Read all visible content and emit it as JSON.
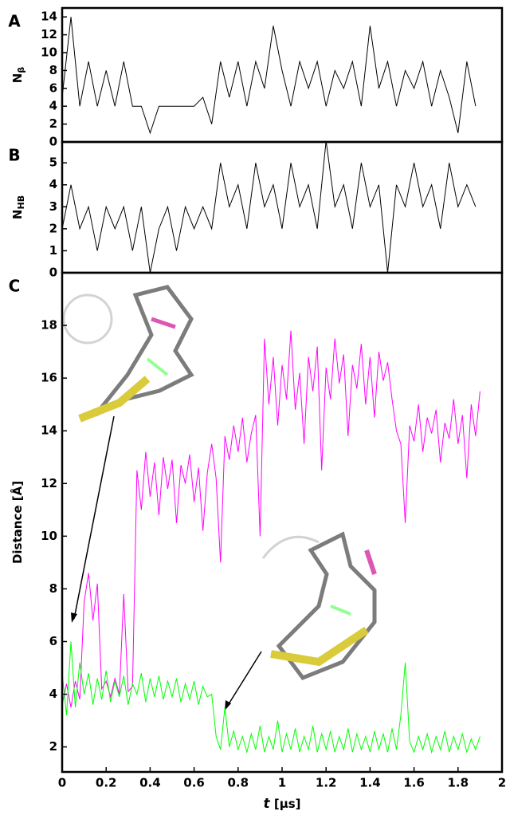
{
  "chart_data": [
    {
      "type": "line",
      "panel_label": "A",
      "y_label": "N",
      "y_label_subscript": "β",
      "xlim": [
        0,
        2
      ],
      "ylim": [
        0,
        15
      ],
      "yticks": [
        0,
        2,
        4,
        6,
        8,
        10,
        12,
        14
      ],
      "x": [
        0,
        0.04,
        0.08,
        0.12,
        0.16,
        0.2,
        0.24,
        0.28,
        0.32,
        0.36,
        0.4,
        0.44,
        0.48,
        0.52,
        0.56,
        0.6,
        0.64,
        0.68,
        0.72,
        0.76,
        0.8,
        0.84,
        0.88,
        0.92,
        0.96,
        1.0,
        1.04,
        1.08,
        1.12,
        1.16,
        1.2,
        1.24,
        1.28,
        1.32,
        1.36,
        1.4,
        1.44,
        1.48,
        1.52,
        1.56,
        1.6,
        1.64,
        1.68,
        1.72,
        1.76,
        1.8,
        1.84,
        1.88
      ],
      "series": [
        {
          "color": "#000000",
          "values": [
            5,
            14,
            4,
            9,
            4,
            8,
            4,
            9,
            4,
            4,
            1,
            4,
            4,
            4,
            4,
            4,
            5,
            2,
            9,
            5,
            9,
            4,
            9,
            6,
            13,
            8,
            4,
            9,
            6,
            9,
            4,
            8,
            6,
            9,
            4,
            13,
            6,
            9,
            4,
            8,
            6,
            9,
            4,
            8,
            5,
            1,
            9,
            4
          ]
        }
      ]
    },
    {
      "type": "line",
      "panel_label": "B",
      "y_label": "N",
      "y_label_subscript": "HB",
      "xlim": [
        0,
        2
      ],
      "ylim": [
        0,
        5.95
      ],
      "yticks": [
        0,
        1,
        2,
        3,
        4,
        5
      ],
      "x": [
        0,
        0.04,
        0.08,
        0.12,
        0.16,
        0.2,
        0.24,
        0.28,
        0.32,
        0.36,
        0.4,
        0.44,
        0.48,
        0.52,
        0.56,
        0.6,
        0.64,
        0.68,
        0.72,
        0.76,
        0.8,
        0.84,
        0.88,
        0.92,
        0.96,
        1.0,
        1.04,
        1.08,
        1.12,
        1.16,
        1.2,
        1.24,
        1.28,
        1.32,
        1.36,
        1.4,
        1.44,
        1.48,
        1.52,
        1.56,
        1.6,
        1.64,
        1.68,
        1.72,
        1.76,
        1.8,
        1.84,
        1.88
      ],
      "series": [
        {
          "color": "#000000",
          "values": [
            2,
            4,
            2,
            3,
            1,
            3,
            2,
            3,
            1,
            3,
            0,
            2,
            3,
            1,
            3,
            2,
            3,
            2,
            5,
            3,
            4,
            2,
            5,
            3,
            4,
            2,
            5,
            3,
            4,
            2,
            6,
            3,
            4,
            2,
            5,
            3,
            4,
            0,
            4,
            3,
            5,
            3,
            4,
            2,
            5,
            3,
            4,
            3
          ]
        }
      ]
    },
    {
      "type": "line",
      "panel_label": "C",
      "y_label": "Distance [Å]",
      "x_label_var": "t",
      "x_label_unit": "[µs]",
      "xlim": [
        0,
        2
      ],
      "ylim": [
        1.05,
        20
      ],
      "yticks": [
        2,
        4,
        6,
        8,
        10,
        12,
        14,
        16,
        18
      ],
      "xticks": [
        0,
        0.2,
        0.4,
        0.6,
        0.8,
        1,
        1.2,
        1.4,
        1.6,
        1.8,
        2
      ],
      "x": [
        0,
        0.02,
        0.04,
        0.06,
        0.08,
        0.1,
        0.12,
        0.14,
        0.16,
        0.18,
        0.2,
        0.22,
        0.24,
        0.26,
        0.28,
        0.3,
        0.32,
        0.34,
        0.36,
        0.38,
        0.4,
        0.42,
        0.44,
        0.46,
        0.48,
        0.5,
        0.52,
        0.54,
        0.56,
        0.58,
        0.6,
        0.62,
        0.64,
        0.66,
        0.68,
        0.7,
        0.72,
        0.74,
        0.76,
        0.78,
        0.8,
        0.82,
        0.84,
        0.86,
        0.88,
        0.9,
        0.92,
        0.94,
        0.96,
        0.98,
        1.0,
        1.02,
        1.04,
        1.06,
        1.08,
        1.1,
        1.12,
        1.14,
        1.16,
        1.18,
        1.2,
        1.22,
        1.24,
        1.26,
        1.28,
        1.3,
        1.32,
        1.34,
        1.36,
        1.38,
        1.4,
        1.42,
        1.44,
        1.46,
        1.48,
        1.5,
        1.52,
        1.54,
        1.56,
        1.58,
        1.6,
        1.62,
        1.64,
        1.66,
        1.68,
        1.7,
        1.72,
        1.74,
        1.76,
        1.78,
        1.8,
        1.82,
        1.84,
        1.86,
        1.88,
        1.9
      ],
      "series": [
        {
          "color": "#ff00ff",
          "values": [
            3.6,
            4.4,
            3.5,
            4.5,
            3.8,
            7.5,
            8.6,
            6.8,
            8.2,
            4.2,
            4.5,
            3.9,
            4.6,
            4.0,
            7.8,
            4.1,
            4.3,
            12.5,
            11.0,
            13.2,
            11.5,
            12.8,
            10.8,
            13.0,
            11.8,
            12.9,
            10.5,
            12.7,
            12.0,
            13.1,
            11.3,
            12.6,
            10.2,
            12.4,
            13.5,
            12.2,
            9.0,
            13.8,
            12.9,
            14.2,
            13.2,
            14.5,
            12.8,
            13.9,
            14.6,
            10.0,
            17.5,
            15.0,
            16.8,
            14.2,
            16.5,
            15.2,
            17.8,
            14.8,
            16.2,
            13.5,
            16.8,
            15.5,
            17.2,
            12.5,
            16.4,
            15.2,
            17.5,
            15.8,
            16.9,
            13.8,
            16.5,
            15.6,
            17.3,
            15.0,
            16.8,
            14.5,
            17.0,
            15.9,
            16.6,
            15.2,
            14.0,
            13.5,
            10.5,
            14.2,
            13.6,
            15.0,
            13.2,
            14.5,
            13.9,
            14.8,
            12.8,
            14.3,
            13.7,
            15.2,
            13.5,
            14.6,
            12.2,
            15.0,
            13.8,
            15.5
          ]
        },
        {
          "color": "#00ff00",
          "values": [
            4.8,
            3.2,
            6.0,
            3.5,
            5.2,
            4.0,
            4.8,
            3.6,
            4.6,
            3.8,
            4.9,
            3.7,
            4.5,
            3.9,
            4.7,
            3.6,
            4.4,
            4.0,
            4.8,
            3.7,
            4.6,
            3.9,
            4.7,
            3.8,
            4.5,
            3.9,
            4.6,
            3.7,
            4.4,
            3.8,
            4.5,
            3.6,
            4.3,
            3.9,
            4.0,
            2.4,
            1.9,
            3.5,
            2.0,
            2.6,
            1.9,
            2.4,
            1.8,
            2.5,
            1.9,
            2.8,
            1.8,
            2.4,
            1.9,
            3.0,
            1.8,
            2.5,
            1.9,
            2.7,
            1.8,
            2.4,
            1.9,
            2.8,
            1.8,
            2.5,
            1.9,
            2.6,
            1.8,
            2.4,
            1.9,
            2.7,
            1.8,
            2.5,
            1.9,
            2.4,
            1.8,
            2.6,
            1.9,
            2.5,
            1.8,
            2.7,
            1.9,
            3.2,
            5.2,
            2.2,
            1.8,
            2.4,
            1.9,
            2.5,
            1.8,
            2.4,
            1.9,
            2.6,
            1.8,
            2.4,
            1.9,
            2.5,
            1.8,
            2.3,
            1.9,
            2.4
          ]
        }
      ]
    }
  ]
}
